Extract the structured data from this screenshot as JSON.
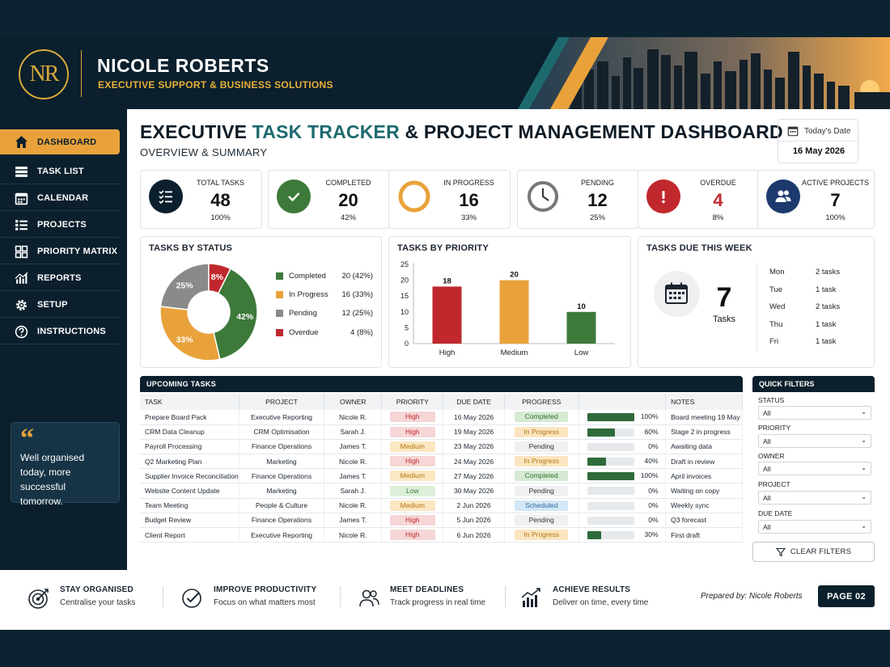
{
  "header": {
    "logo": "NR",
    "name": "NICOLE ROBERTS",
    "subtitle": "EXECUTIVE SUPPORT & BUSINESS SOLUTIONS"
  },
  "sidebar": {
    "items": [
      {
        "label": "DASHBOARD",
        "icon": "home-icon",
        "active": true
      },
      {
        "label": "TASK LIST",
        "icon": "list-icon"
      },
      {
        "label": "CALENDAR",
        "icon": "calendar-icon"
      },
      {
        "label": "PROJECTS",
        "icon": "checklist-icon"
      },
      {
        "label": "PRIORITY MATRIX",
        "icon": "grid-icon"
      },
      {
        "label": "REPORTS",
        "icon": "bar-chart-icon"
      },
      {
        "label": "SETUP",
        "icon": "gear-icon"
      },
      {
        "label": "INSTRUCTIONS",
        "icon": "help-icon"
      }
    ],
    "quote": "Well organised today, more successful tomorrow."
  },
  "main": {
    "title_part1": "EXECUTIVE ",
    "title_highlight": "TASK TRACKER",
    "title_part2": " & PROJECT MANAGEMENT DASHBOARD",
    "subtitle": "OVERVIEW & SUMMARY",
    "date_label": "Today's Date",
    "date_value": "16 May 2026"
  },
  "kpis": [
    {
      "label": "TOTAL TASKS",
      "value": "48",
      "pct": "100%",
      "color": "#0b1f2c",
      "icon": "checklist-icon"
    },
    {
      "label": "COMPLETED",
      "value": "20",
      "pct": "42%",
      "color": "#3d7a3a",
      "icon": "check-icon"
    },
    {
      "label": "IN PROGRESS",
      "value": "16",
      "pct": "33%",
      "color": "#e9a23b",
      "icon": "ring-icon"
    },
    {
      "label": "PENDING",
      "value": "12",
      "pct": "25%",
      "color": "#777777",
      "icon": "clock-icon"
    },
    {
      "label": "OVERDUE",
      "value": "4",
      "pct": "8%",
      "color": "#c0282d",
      "icon": "alert-icon"
    },
    {
      "label": "ACTIVE PROJECTS",
      "value": "7",
      "pct": "100%",
      "color": "#1c3a6e",
      "icon": "users-icon"
    }
  ],
  "status_card": {
    "title": "TASKS BY STATUS",
    "legend": [
      {
        "label": "Completed",
        "value": "20 (42%)",
        "color": "#3d7a3a"
      },
      {
        "label": "In Progress",
        "value": "16 (33%)",
        "color": "#e9a23b"
      },
      {
        "label": "Pending",
        "value": "12 (25%)",
        "color": "#8a8a8a"
      },
      {
        "label": "Overdue",
        "value": "4 (8%)",
        "color": "#c0282d"
      }
    ]
  },
  "priority_card": {
    "title": "TASKS BY PRIORITY"
  },
  "due_card": {
    "title": "TASKS DUE THIS WEEK",
    "count": "7",
    "count_label": "Tasks",
    "days": [
      {
        "day": "Mon",
        "tasks": "2 tasks"
      },
      {
        "day": "Tue",
        "tasks": "1 task"
      },
      {
        "day": "Wed",
        "tasks": "2 tasks"
      },
      {
        "day": "Thu",
        "tasks": "1 task"
      },
      {
        "day": "Fri",
        "tasks": "1 task"
      }
    ]
  },
  "chart_data": [
    {
      "type": "pie",
      "title": "TASKS BY STATUS",
      "categories": [
        "Completed",
        "In Progress",
        "Pending",
        "Overdue"
      ],
      "values": [
        42,
        33,
        25,
        8
      ],
      "slice_labels": [
        "42%",
        "33%",
        "25%",
        "8%"
      ],
      "colors": [
        "#3d7a3a",
        "#e9a23b",
        "#8a8a8a",
        "#c0282d"
      ]
    },
    {
      "type": "bar",
      "title": "TASKS BY PRIORITY",
      "categories": [
        "High",
        "Medium",
        "Low"
      ],
      "values": [
        18,
        20,
        10
      ],
      "colors": [
        "#c0282d",
        "#e9a23b",
        "#3d7a3a"
      ],
      "ylim": [
        0,
        25
      ],
      "yticks": [
        "0",
        "5",
        "10",
        "15",
        "20",
        "25"
      ],
      "grid": false
    }
  ],
  "table": {
    "title": "UPCOMING TASKS",
    "columns": [
      "TASK",
      "PROJECT",
      "OWNER",
      "PRIORITY",
      "DUE DATE",
      "PROGRESS",
      "",
      "NOTES"
    ],
    "rows": [
      {
        "task": "Prepare Board Pack",
        "project": "Executive Reporting",
        "owner": "Nicole R.",
        "priority": "High",
        "due": "16 May 2026",
        "status": "Completed",
        "progress": 100,
        "pct": "100%",
        "notes": "Board meeting 19 May"
      },
      {
        "task": "CRM Data Cleanup",
        "project": "CRM Optimisation",
        "owner": "Sarah J.",
        "priority": "High",
        "due": "19 May 2026",
        "status": "In Progress",
        "progress": 60,
        "pct": "60%",
        "notes": "Stage 2 in progress"
      },
      {
        "task": "Payroll Processing",
        "project": "Finance Operations",
        "owner": "James T.",
        "priority": "Medium",
        "due": "23 May 2026",
        "status": "Pending",
        "progress": 0,
        "pct": "0%",
        "notes": "Awaiting data"
      },
      {
        "task": "Q2 Marketing Plan",
        "project": "Marketing",
        "owner": "Nicole R.",
        "priority": "High",
        "due": "24 May 2026",
        "status": "In Progress",
        "progress": 40,
        "pct": "40%",
        "notes": "Draft in review"
      },
      {
        "task": "Supplier Invoice Reconciliation",
        "project": "Finance Operations",
        "owner": "James T.",
        "priority": "Medium",
        "due": "27 May 2026",
        "status": "Completed",
        "progress": 100,
        "pct": "100%",
        "notes": "April invoices"
      },
      {
        "task": "Website Content Update",
        "project": "Marketing",
        "owner": "Sarah J.",
        "priority": "Low",
        "due": "30 May 2026",
        "status": "Pending",
        "progress": 0,
        "pct": "0%",
        "notes": "Waiting on copy"
      },
      {
        "task": "Team Meeting",
        "project": "People & Culture",
        "owner": "Nicole R.",
        "priority": "Medium",
        "due": "2 Jun 2026",
        "status": "Scheduled",
        "progress": 0,
        "pct": "0%",
        "notes": "Weekly sync"
      },
      {
        "task": "Budget Review",
        "project": "Finance Operations",
        "owner": "James T.",
        "priority": "High",
        "due": "5 Jun 2026",
        "status": "Pending",
        "progress": 0,
        "pct": "0%",
        "notes": "Q3 forecast"
      },
      {
        "task": "Client Report",
        "project": "Executive Reporting",
        "owner": "Nicole R.",
        "priority": "High",
        "due": "6 Jun 2026",
        "status": "In Progress",
        "progress": 30,
        "pct": "30%",
        "notes": "First draft"
      }
    ]
  },
  "filters": {
    "title": "QUICK FILTERS",
    "items": [
      {
        "label": "STATUS",
        "value": "All"
      },
      {
        "label": "PRIORITY",
        "value": "All"
      },
      {
        "label": "OWNER",
        "value": "All"
      },
      {
        "label": "PROJECT",
        "value": "All"
      },
      {
        "label": "DUE DATE",
        "value": "All"
      }
    ],
    "clear_label": "CLEAR FILTERS"
  },
  "footer": {
    "items": [
      {
        "title": "STAY ORGANISED",
        "text": "Centralise your tasks",
        "icon": "target-icon"
      },
      {
        "title": "IMPROVE PRODUCTIVITY",
        "text": "Focus on what matters most",
        "icon": "check-circle-icon"
      },
      {
        "title": "MEET DEADLINES",
        "text": "Track progress in real time",
        "icon": "users-icon"
      },
      {
        "title": "ACHIEVE RESULTS",
        "text": "Deliver on time, every time",
        "icon": "growth-chart-icon"
      }
    ],
    "prepared": "Prepared by: Nicole Roberts",
    "page": "PAGE 02"
  }
}
